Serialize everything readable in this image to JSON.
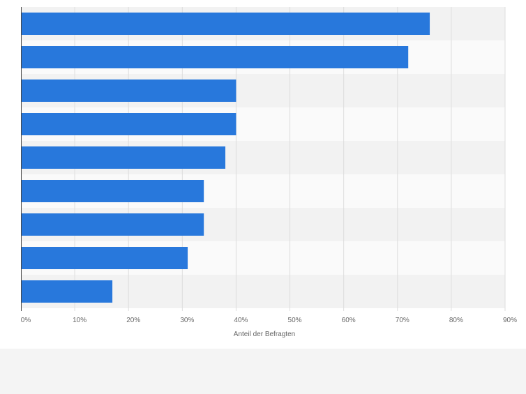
{
  "chart_data": {
    "type": "bar",
    "orientation": "horizontal",
    "categories": [
      "",
      "",
      "",
      "",
      "",
      "",
      "",
      "",
      ""
    ],
    "values": [
      76,
      72,
      40,
      40,
      38,
      34,
      34,
      31,
      17
    ],
    "unit": "%",
    "xlabel": "Anteil der Befragten",
    "ylabel": "",
    "xlim": [
      0,
      90
    ],
    "xticks": [
      "0%",
      "10%",
      "20%",
      "30%",
      "40%",
      "50%",
      "60%",
      "70%",
      "80%",
      "90%"
    ],
    "grid": true,
    "bar_color": "#2878dc"
  }
}
